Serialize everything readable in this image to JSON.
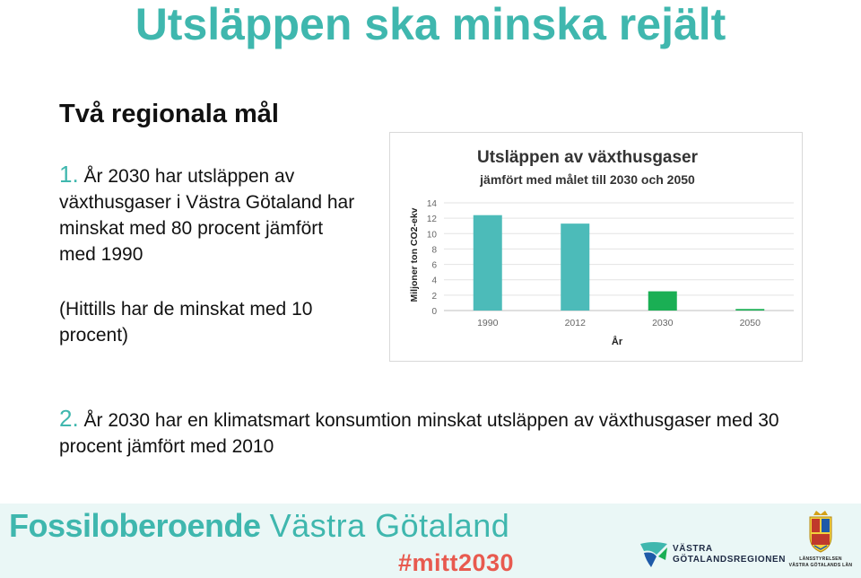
{
  "slide": {
    "title": "Utsläppen ska minska rejält",
    "subtitle": "Två regionala mål",
    "goal1": {
      "number": "1.",
      "text": "År 2030 har utsläppen av växthusgaser i Västra Götaland har minskat med 80 procent jämfört med 1990"
    },
    "note": "(Hittills har de minskat med 10 procent)",
    "goal2": {
      "number": "2.",
      "text": "År 2030 har en klimatsmart konsumtion minskat utsläppen av växthusgaser med 30 procent jämfört med 2010"
    }
  },
  "chart_data": {
    "type": "bar",
    "title": "Utsläppen av växthusgaser",
    "subtitle": "jämfört med målet till 2030 och 2050",
    "ylabel": "Miljoner ton CO2-ekv",
    "xlabel": "År",
    "categories": [
      "1990",
      "2012",
      "2030",
      "2050"
    ],
    "values": [
      12.4,
      11.3,
      2.5,
      0.2
    ],
    "bar_colors": [
      "#4cbbb9",
      "#4cbbb9",
      "#1aaf54",
      "#1aaf54"
    ],
    "ylim": [
      0,
      14
    ],
    "yticks": [
      "0",
      "2",
      "4",
      "6",
      "8",
      "10",
      "12",
      "14"
    ],
    "grid": true
  },
  "footer": {
    "brand_bold": "Fossiloberoende",
    "brand_light": "Västra Götaland",
    "hashtag": "#mitt2030",
    "vgr_line1": "VÄSTRA",
    "vgr_line2": "GÖTALANDSREGIONEN",
    "lst_line1": "LÄNSSTYRELSEN",
    "lst_line2": "VÄSTRA GÖTALANDS LÄN"
  },
  "colors": {
    "accent": "#3fb7ae",
    "hashtag": "#e85a4f",
    "footer_bg": "#eaf7f6"
  }
}
